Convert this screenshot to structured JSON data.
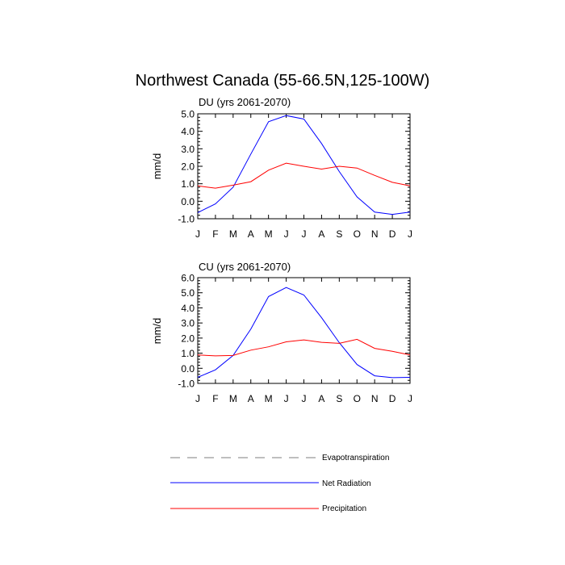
{
  "title": "Northwest Canada (55-66.5N,125-100W)",
  "chart_data": [
    {
      "type": "line",
      "title": "DU (yrs 2061-2070)",
      "ylabel": "mm/d",
      "xlabel": "",
      "categories": [
        "J",
        "F",
        "M",
        "A",
        "M",
        "J",
        "J",
        "A",
        "S",
        "O",
        "N",
        "D",
        "J"
      ],
      "ylim": [
        -1.0,
        5.0
      ],
      "yticks": [
        "-1.0",
        "0.0",
        "1.0",
        "2.0",
        "3.0",
        "4.0",
        "5.0"
      ],
      "series": [
        {
          "name": "Net Radiation",
          "color": "#0000ff",
          "values": [
            -0.65,
            -0.15,
            0.8,
            2.7,
            4.55,
            4.9,
            4.7,
            3.3,
            1.7,
            0.25,
            -0.62,
            -0.75,
            -0.62
          ]
        },
        {
          "name": "Precipitation",
          "color": "#ff0000",
          "values": [
            0.88,
            0.75,
            0.92,
            1.12,
            1.78,
            2.18,
            2.0,
            1.84,
            2.0,
            1.9,
            1.48,
            1.08,
            0.88
          ]
        }
      ]
    },
    {
      "type": "line",
      "title": "CU (yrs 2061-2070)",
      "ylabel": "mm/d",
      "xlabel": "",
      "categories": [
        "J",
        "F",
        "M",
        "A",
        "M",
        "J",
        "J",
        "A",
        "S",
        "O",
        "N",
        "D",
        "J"
      ],
      "ylim": [
        -1.0,
        6.0
      ],
      "yticks": [
        "-1.0",
        "0.0",
        "1.0",
        "2.0",
        "3.0",
        "4.0",
        "5.0",
        "6.0"
      ],
      "series": [
        {
          "name": "Net Radiation",
          "color": "#0000ff",
          "values": [
            -0.6,
            -0.1,
            0.85,
            2.6,
            4.75,
            5.35,
            4.85,
            3.35,
            1.7,
            0.25,
            -0.5,
            -0.62,
            -0.6
          ]
        },
        {
          "name": "Precipitation",
          "color": "#ff0000",
          "values": [
            0.88,
            0.82,
            0.85,
            1.2,
            1.42,
            1.75,
            1.88,
            1.72,
            1.65,
            1.92,
            1.32,
            1.12,
            0.88
          ]
        }
      ]
    }
  ],
  "legend": [
    {
      "label": "Evapotranspiration",
      "color": "#999999",
      "dash": true
    },
    {
      "label": "Net Radiation",
      "color": "#0000ff",
      "dash": false
    },
    {
      "label": "Precipitation",
      "color": "#ff0000",
      "dash": false
    }
  ]
}
